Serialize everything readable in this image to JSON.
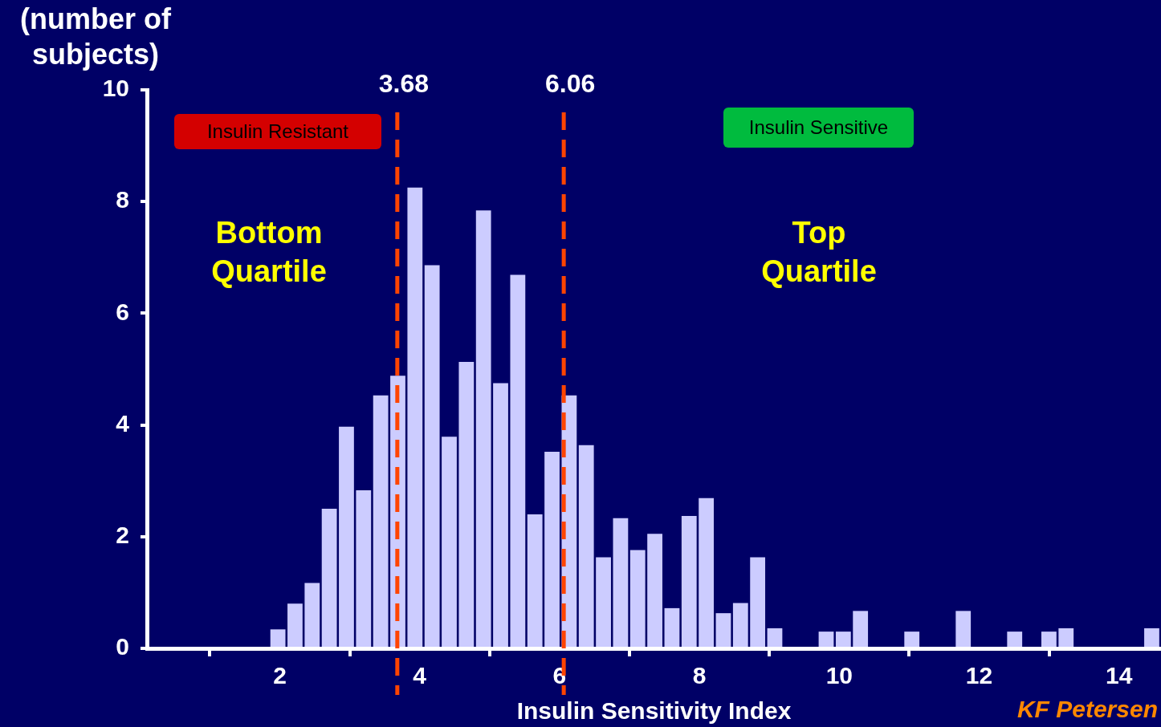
{
  "chart_data": {
    "type": "histogram",
    "xlabel": "Insulin Sensitivity Index",
    "ylabel": "(number of subjects)",
    "bins": [
      1.85,
      2.095,
      2.34,
      2.585,
      2.83,
      3.075,
      3.32,
      3.565,
      3.81,
      4.055,
      4.3,
      4.545,
      4.79,
      5.035,
      5.28,
      5.525,
      5.77,
      6.015,
      6.26,
      6.505,
      6.75,
      6.995,
      7.24,
      7.485,
      7.73,
      7.975,
      8.22,
      8.465,
      8.71,
      8.955,
      9.2,
      9.445,
      9.69,
      9.935,
      10.18,
      10.425,
      10.67,
      10.915,
      11.16,
      11.405,
      11.65,
      11.895,
      12.14,
      12.385,
      12.63,
      12.875,
      13.12,
      13.365,
      13.61,
      13.855,
      14.1,
      14.345,
      14.59
    ],
    "values": [
      0.34,
      0.8,
      1.17,
      2.5,
      3.97,
      2.83,
      4.53,
      4.88,
      8.25,
      6.86,
      3.79,
      5.13,
      7.84,
      4.75,
      6.69,
      2.4,
      3.52,
      4.53,
      3.64,
      1.63,
      2.33,
      1.76,
      2.05,
      0.72,
      2.37,
      2.69,
      0.63,
      0.81,
      1.63,
      0.36,
      0,
      0,
      0.3,
      0.3,
      0.67,
      0,
      0,
      0.3,
      0,
      0,
      0.67,
      0,
      0,
      0.3,
      0,
      0.3,
      0.36,
      0,
      0,
      0,
      0,
      0.36
    ],
    "color": "#ccccff",
    "xlim": [
      0.1,
      14.6
    ],
    "xticks": [
      2,
      4,
      6,
      8,
      10,
      12,
      14
    ],
    "ylim": [
      0,
      10
    ],
    "yticks": [
      0,
      2,
      4,
      6,
      8,
      10
    ],
    "ref_lines": [
      {
        "axis": "x",
        "value": 3.68,
        "label": "3.68",
        "color": "#ff4400",
        "line_style": "dashed"
      },
      {
        "axis": "x",
        "value": 6.06,
        "label": "6.06",
        "color": "#ff4400",
        "line_style": "dashed"
      }
    ],
    "annotations": [
      "Insulin Resistant",
      "Insulin Sensitive",
      "Bottom Quartile",
      "Top Quartile",
      "KF Petersen"
    ]
  }
}
